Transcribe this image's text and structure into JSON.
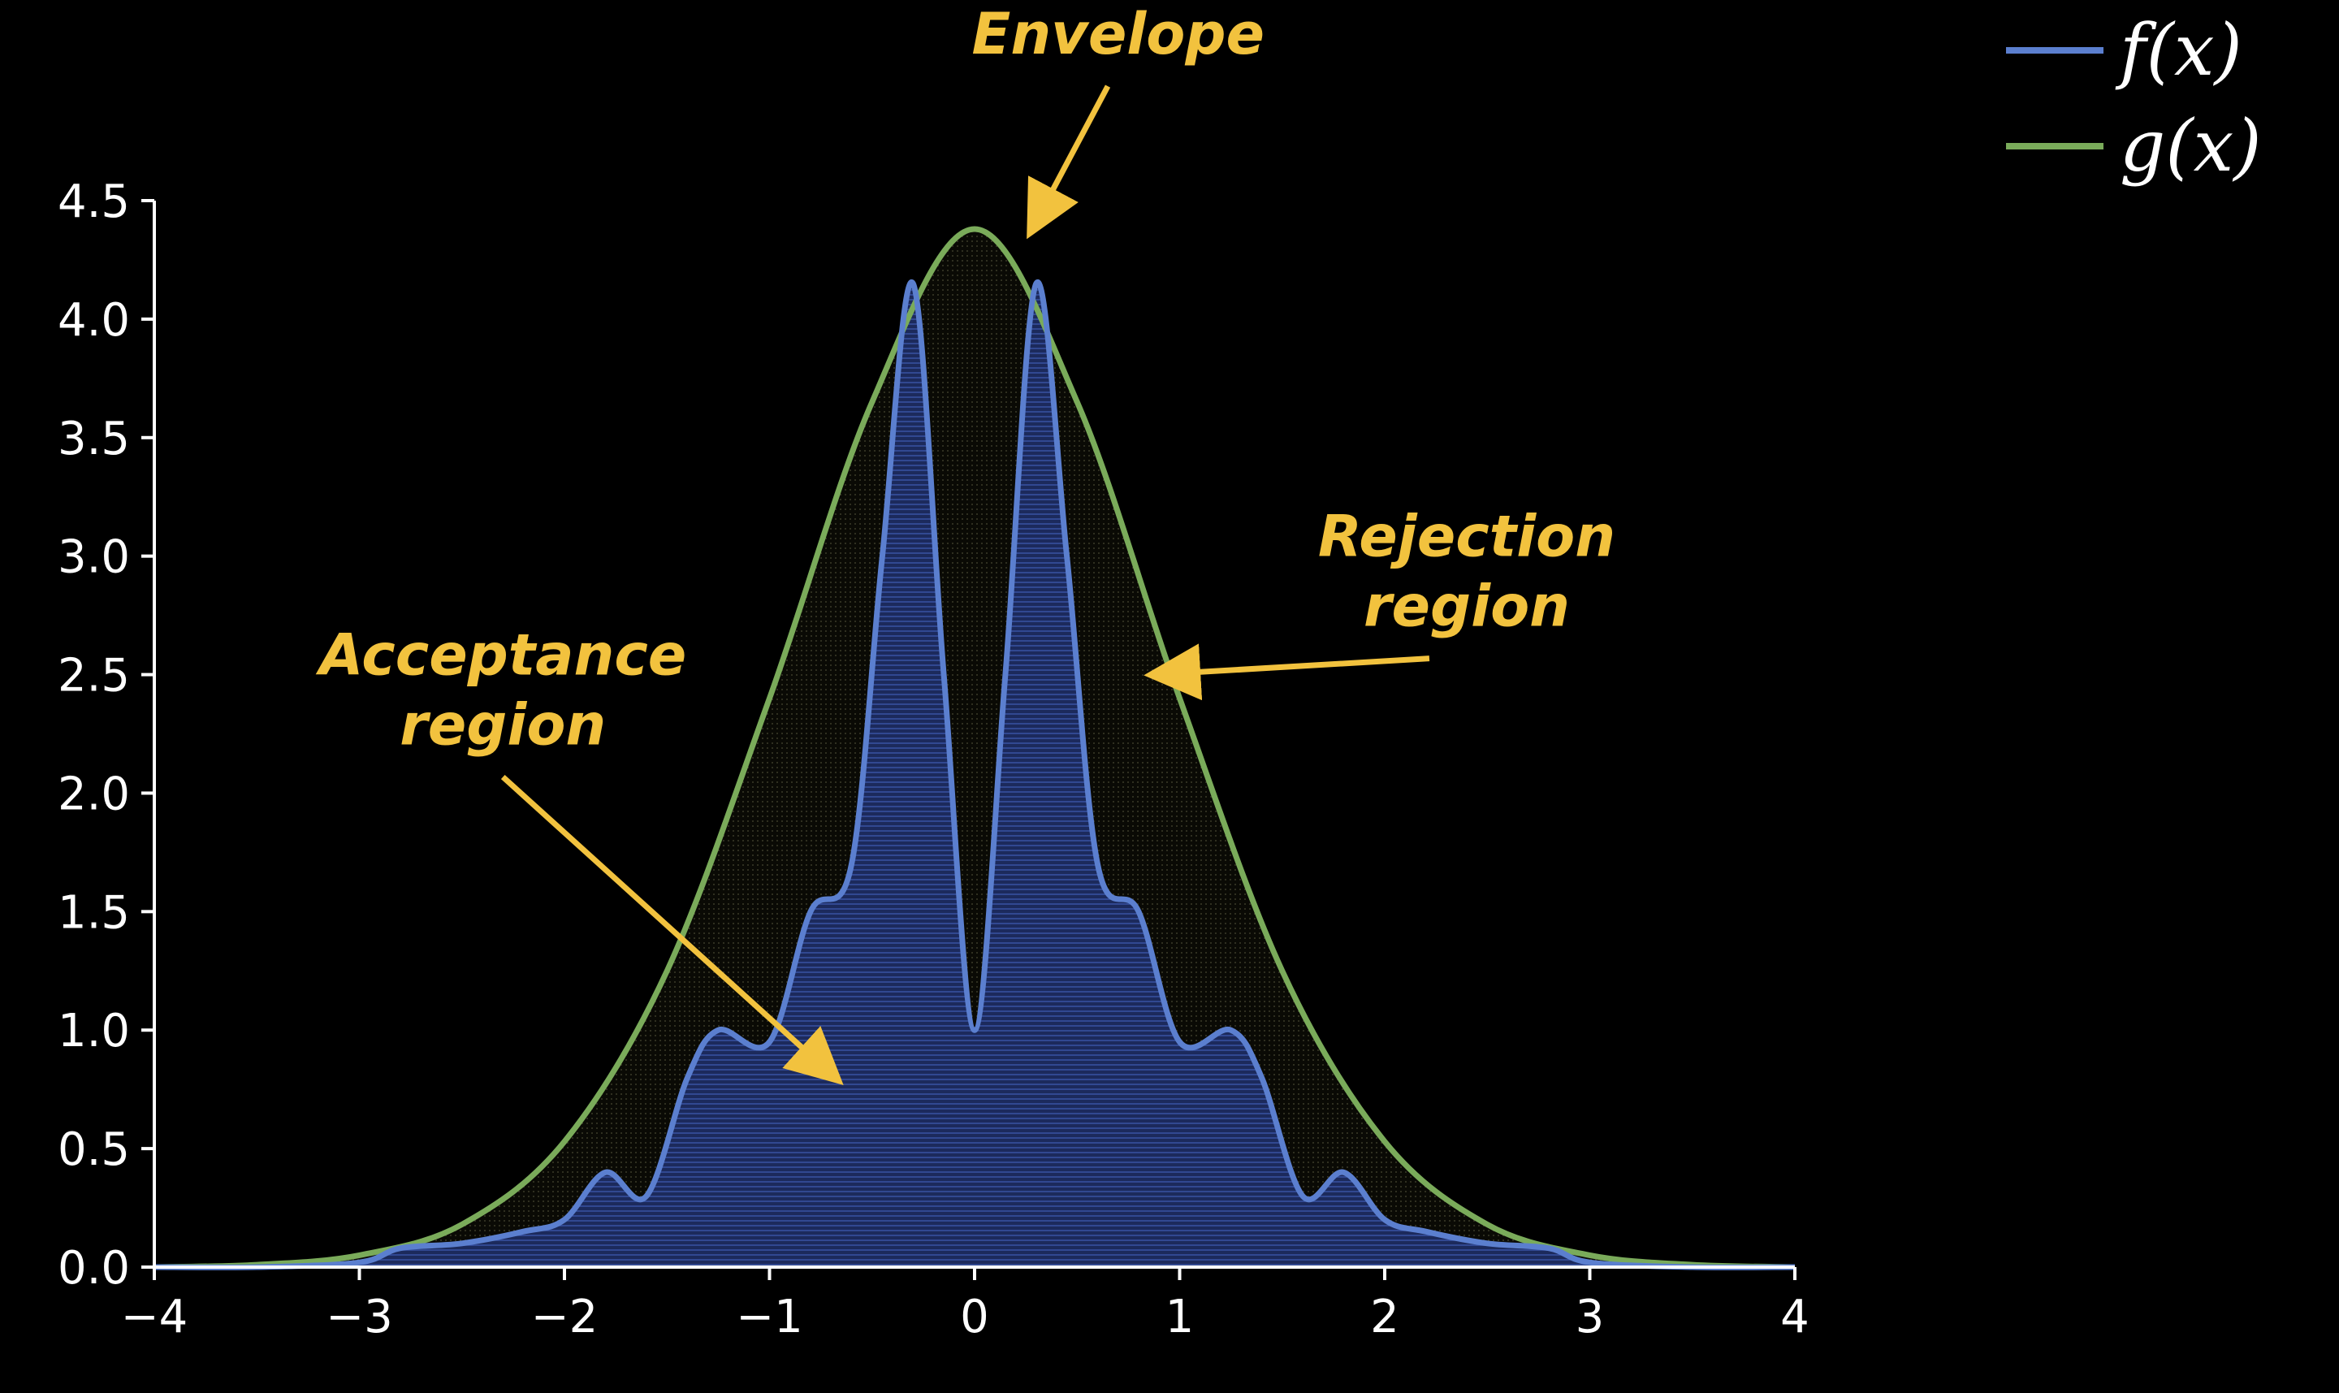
{
  "chart_data": {
    "type": "line",
    "xlim": [
      -4,
      4
    ],
    "ylim": [
      0,
      4.5
    ],
    "x_ticks": [
      "−4",
      "−3",
      "−2",
      "−1",
      "0",
      "1",
      "2",
      "3",
      "4"
    ],
    "y_ticks": [
      "0.0",
      "0.5",
      "1.0",
      "1.5",
      "2.0",
      "2.5",
      "3.0",
      "3.5",
      "4.0",
      "4.5"
    ],
    "grid": false,
    "legend_position": "top-right",
    "series": [
      {
        "name": "f(x)",
        "color": "#5b7fcf",
        "x": [
          -4,
          -3.5,
          -3.0,
          -2.8,
          -2.5,
          -2.2,
          -2.0,
          -1.8,
          -1.6,
          -1.4,
          -1.25,
          -1.0,
          -0.8,
          -0.6,
          -0.45,
          -0.3,
          -0.15,
          0,
          0.15,
          0.3,
          0.45,
          0.6,
          0.8,
          1.0,
          1.25,
          1.4,
          1.6,
          1.8,
          2.0,
          2.2,
          2.5,
          2.8,
          3.0,
          3.5,
          4
        ],
        "values": [
          0,
          0,
          0.02,
          0.08,
          0.1,
          0.15,
          0.2,
          0.4,
          0.3,
          0.8,
          1.0,
          0.95,
          1.5,
          1.7,
          3.0,
          4.15,
          2.5,
          1.0,
          2.5,
          4.15,
          3.0,
          1.7,
          1.5,
          0.95,
          1.0,
          0.8,
          0.3,
          0.4,
          0.2,
          0.15,
          0.1,
          0.08,
          0.02,
          0,
          0
        ]
      },
      {
        "name": "g(x)",
        "color": "#7aab5a",
        "x": [
          -4,
          -3.5,
          -3.0,
          -2.5,
          -2.0,
          -1.5,
          -1.0,
          -0.5,
          0,
          0.5,
          1.0,
          1.5,
          2.0,
          2.5,
          3.0,
          3.5,
          4
        ],
        "values": [
          0.0,
          0.01,
          0.05,
          0.18,
          0.53,
          1.25,
          2.4,
          3.65,
          4.38,
          3.65,
          2.4,
          1.25,
          0.53,
          0.18,
          0.05,
          0.01,
          0.0
        ]
      }
    ],
    "annotations": [
      {
        "text": "Envelope",
        "x": 0.7,
        "y": 5.12,
        "arrow_x": 0.28,
        "arrow_y": 4.38
      },
      {
        "text": "Rejection region",
        "x": 2.4,
        "y": 3.0,
        "arrow_x": 0.88,
        "arrow_y": 2.5
      },
      {
        "text": "Acceptance region",
        "x": -2.3,
        "y": 2.5,
        "arrow_x": -0.68,
        "arrow_y": 0.8
      }
    ],
    "legend_entries": [
      "f(x)",
      "g(x)"
    ]
  }
}
